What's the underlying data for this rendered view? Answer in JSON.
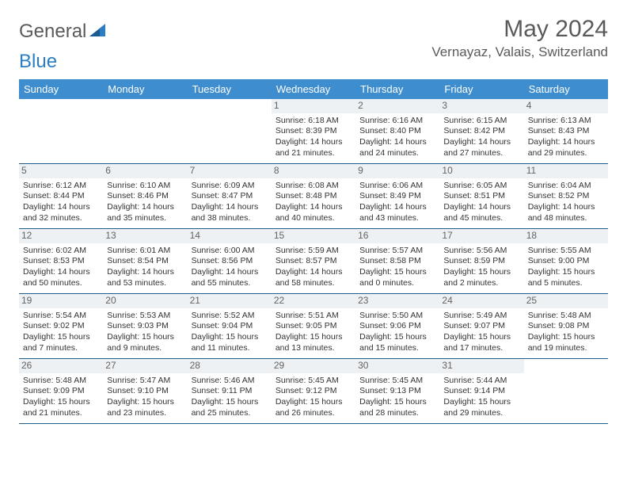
{
  "logo": {
    "prefix": "General",
    "suffix": "Blue"
  },
  "title": "May 2024",
  "location": "Vernayaz, Valais, Switzerland",
  "colors": {
    "header_bg": "#3e8dce",
    "header_text": "#ffffff",
    "row_border": "#1f5d8a",
    "daynum_bg": "#eef1f3",
    "daynum_text": "#636363",
    "body_text": "#333333",
    "title_text": "#5a5a5a",
    "logo_blue": "#2b7dc4",
    "page_bg": "#ffffff"
  },
  "fonts": {
    "title_size_pt": 22,
    "location_size_pt": 13,
    "dayheader_size_pt": 10,
    "daynum_size_pt": 9,
    "body_size_pt": 8
  },
  "days_of_week": [
    "Sunday",
    "Monday",
    "Tuesday",
    "Wednesday",
    "Thursday",
    "Friday",
    "Saturday"
  ],
  "weeks": [
    [
      null,
      null,
      null,
      {
        "n": "1",
        "sunrise": "6:18 AM",
        "sunset": "8:39 PM",
        "dl1": "Daylight: 14 hours",
        "dl2": "and 21 minutes."
      },
      {
        "n": "2",
        "sunrise": "6:16 AM",
        "sunset": "8:40 PM",
        "dl1": "Daylight: 14 hours",
        "dl2": "and 24 minutes."
      },
      {
        "n": "3",
        "sunrise": "6:15 AM",
        "sunset": "8:42 PM",
        "dl1": "Daylight: 14 hours",
        "dl2": "and 27 minutes."
      },
      {
        "n": "4",
        "sunrise": "6:13 AM",
        "sunset": "8:43 PM",
        "dl1": "Daylight: 14 hours",
        "dl2": "and 29 minutes."
      }
    ],
    [
      {
        "n": "5",
        "sunrise": "6:12 AM",
        "sunset": "8:44 PM",
        "dl1": "Daylight: 14 hours",
        "dl2": "and 32 minutes."
      },
      {
        "n": "6",
        "sunrise": "6:10 AM",
        "sunset": "8:46 PM",
        "dl1": "Daylight: 14 hours",
        "dl2": "and 35 minutes."
      },
      {
        "n": "7",
        "sunrise": "6:09 AM",
        "sunset": "8:47 PM",
        "dl1": "Daylight: 14 hours",
        "dl2": "and 38 minutes."
      },
      {
        "n": "8",
        "sunrise": "6:08 AM",
        "sunset": "8:48 PM",
        "dl1": "Daylight: 14 hours",
        "dl2": "and 40 minutes."
      },
      {
        "n": "9",
        "sunrise": "6:06 AM",
        "sunset": "8:49 PM",
        "dl1": "Daylight: 14 hours",
        "dl2": "and 43 minutes."
      },
      {
        "n": "10",
        "sunrise": "6:05 AM",
        "sunset": "8:51 PM",
        "dl1": "Daylight: 14 hours",
        "dl2": "and 45 minutes."
      },
      {
        "n": "11",
        "sunrise": "6:04 AM",
        "sunset": "8:52 PM",
        "dl1": "Daylight: 14 hours",
        "dl2": "and 48 minutes."
      }
    ],
    [
      {
        "n": "12",
        "sunrise": "6:02 AM",
        "sunset": "8:53 PM",
        "dl1": "Daylight: 14 hours",
        "dl2": "and 50 minutes."
      },
      {
        "n": "13",
        "sunrise": "6:01 AM",
        "sunset": "8:54 PM",
        "dl1": "Daylight: 14 hours",
        "dl2": "and 53 minutes."
      },
      {
        "n": "14",
        "sunrise": "6:00 AM",
        "sunset": "8:56 PM",
        "dl1": "Daylight: 14 hours",
        "dl2": "and 55 minutes."
      },
      {
        "n": "15",
        "sunrise": "5:59 AM",
        "sunset": "8:57 PM",
        "dl1": "Daylight: 14 hours",
        "dl2": "and 58 minutes."
      },
      {
        "n": "16",
        "sunrise": "5:57 AM",
        "sunset": "8:58 PM",
        "dl1": "Daylight: 15 hours",
        "dl2": "and 0 minutes."
      },
      {
        "n": "17",
        "sunrise": "5:56 AM",
        "sunset": "8:59 PM",
        "dl1": "Daylight: 15 hours",
        "dl2": "and 2 minutes."
      },
      {
        "n": "18",
        "sunrise": "5:55 AM",
        "sunset": "9:00 PM",
        "dl1": "Daylight: 15 hours",
        "dl2": "and 5 minutes."
      }
    ],
    [
      {
        "n": "19",
        "sunrise": "5:54 AM",
        "sunset": "9:02 PM",
        "dl1": "Daylight: 15 hours",
        "dl2": "and 7 minutes."
      },
      {
        "n": "20",
        "sunrise": "5:53 AM",
        "sunset": "9:03 PM",
        "dl1": "Daylight: 15 hours",
        "dl2": "and 9 minutes."
      },
      {
        "n": "21",
        "sunrise": "5:52 AM",
        "sunset": "9:04 PM",
        "dl1": "Daylight: 15 hours",
        "dl2": "and 11 minutes."
      },
      {
        "n": "22",
        "sunrise": "5:51 AM",
        "sunset": "9:05 PM",
        "dl1": "Daylight: 15 hours",
        "dl2": "and 13 minutes."
      },
      {
        "n": "23",
        "sunrise": "5:50 AM",
        "sunset": "9:06 PM",
        "dl1": "Daylight: 15 hours",
        "dl2": "and 15 minutes."
      },
      {
        "n": "24",
        "sunrise": "5:49 AM",
        "sunset": "9:07 PM",
        "dl1": "Daylight: 15 hours",
        "dl2": "and 17 minutes."
      },
      {
        "n": "25",
        "sunrise": "5:48 AM",
        "sunset": "9:08 PM",
        "dl1": "Daylight: 15 hours",
        "dl2": "and 19 minutes."
      }
    ],
    [
      {
        "n": "26",
        "sunrise": "5:48 AM",
        "sunset": "9:09 PM",
        "dl1": "Daylight: 15 hours",
        "dl2": "and 21 minutes."
      },
      {
        "n": "27",
        "sunrise": "5:47 AM",
        "sunset": "9:10 PM",
        "dl1": "Daylight: 15 hours",
        "dl2": "and 23 minutes."
      },
      {
        "n": "28",
        "sunrise": "5:46 AM",
        "sunset": "9:11 PM",
        "dl1": "Daylight: 15 hours",
        "dl2": "and 25 minutes."
      },
      {
        "n": "29",
        "sunrise": "5:45 AM",
        "sunset": "9:12 PM",
        "dl1": "Daylight: 15 hours",
        "dl2": "and 26 minutes."
      },
      {
        "n": "30",
        "sunrise": "5:45 AM",
        "sunset": "9:13 PM",
        "dl1": "Daylight: 15 hours",
        "dl2": "and 28 minutes."
      },
      {
        "n": "31",
        "sunrise": "5:44 AM",
        "sunset": "9:14 PM",
        "dl1": "Daylight: 15 hours",
        "dl2": "and 29 minutes."
      },
      null
    ]
  ]
}
